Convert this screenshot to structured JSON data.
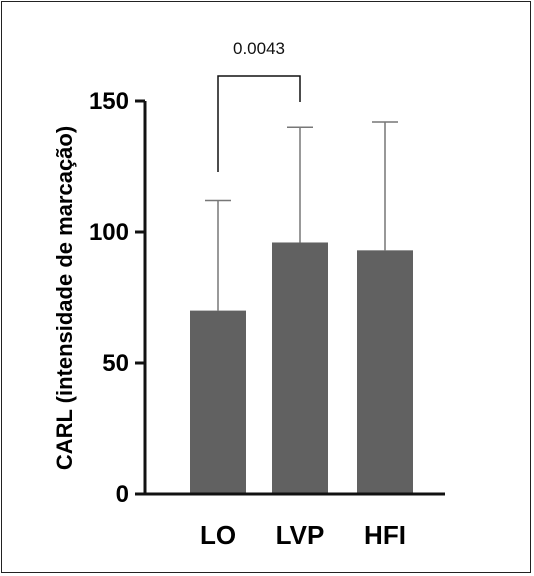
{
  "chart_data": {
    "type": "bar",
    "categories": [
      "LO",
      "LVP",
      "HFI"
    ],
    "values": [
      70,
      96,
      93
    ],
    "error_upper": [
      112,
      140,
      142
    ],
    "ylabel": "CARL (intensidade de marcação)",
    "xlabel": "",
    "ylim": [
      0,
      150
    ],
    "yticks": [
      0,
      50,
      100,
      150
    ],
    "ytick_labels": [
      "0",
      "50",
      "100",
      "150"
    ],
    "grid": false,
    "bar_color": "#616161",
    "error_color": "#777777",
    "annotation": {
      "text": "0.0043",
      "between": [
        "LO",
        "LVP"
      ]
    }
  }
}
